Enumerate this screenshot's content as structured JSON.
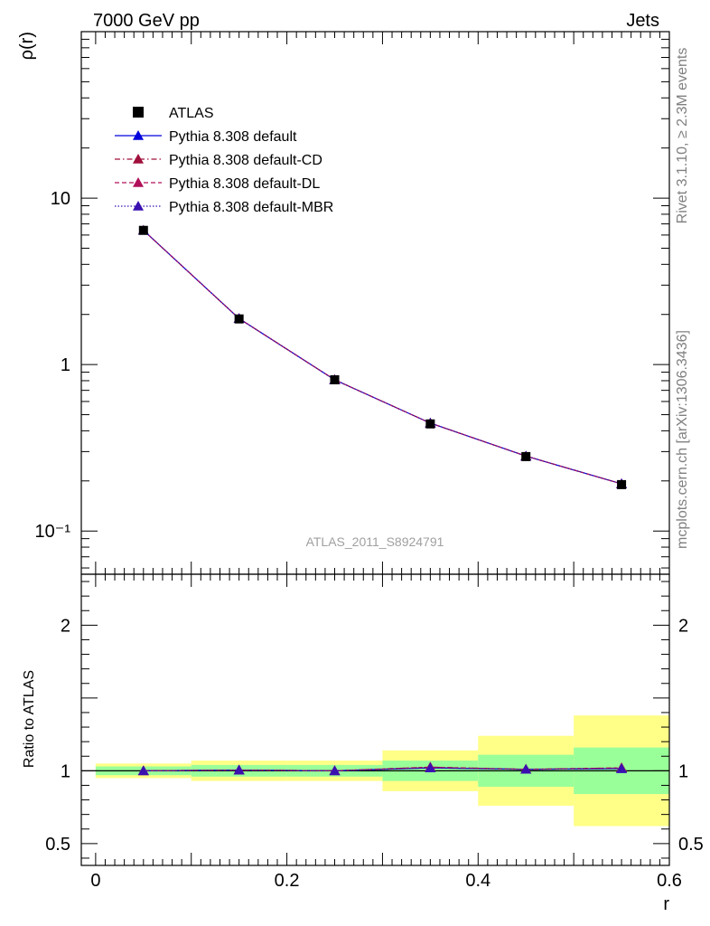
{
  "header": {
    "left": "7000 GeV pp",
    "right": "Jets"
  },
  "side_text": {
    "rivet": "Rivet 3.1.10, ≥ 2.3M events",
    "source": "mcplots.cern.ch [arXiv:1306.3436]"
  },
  "watermark": "ATLAS_2011_S8924791",
  "colors": {
    "atlas": "#000000",
    "default": "#0000dd",
    "cd": "#a0103c",
    "dl": "#b0105a",
    "mbr": "#3a10b0",
    "band_yellow": "#ffff88",
    "band_green": "#99ff99"
  },
  "chart_data": [
    {
      "type": "line",
      "panel": "main",
      "ylabel": "ρ(r)",
      "yscale": "log",
      "ylim": [
        0.055,
        100
      ],
      "xlim": [
        -0.015,
        0.6
      ],
      "y_ticks": [
        {
          "value": 10,
          "label": "10"
        },
        {
          "value": 1,
          "label": "1"
        },
        {
          "value": 0.1,
          "label": "10⁻¹"
        }
      ],
      "legend_position": "top-left",
      "x": [
        0.05,
        0.15,
        0.25,
        0.35,
        0.45,
        0.55
      ],
      "series": [
        {
          "name": "ATLAS",
          "marker": "square",
          "values": [
            6.4,
            1.88,
            0.81,
            0.44,
            0.28,
            0.19
          ]
        },
        {
          "name": "Pythia 8.308 default",
          "marker": "triangle",
          "line": "solid",
          "values": [
            6.4,
            1.89,
            0.81,
            0.445,
            0.282,
            0.192
          ]
        },
        {
          "name": "Pythia 8.308 default-CD",
          "marker": "triangle",
          "line": "dashdot",
          "values": [
            6.4,
            1.89,
            0.81,
            0.445,
            0.282,
            0.192
          ]
        },
        {
          "name": "Pythia 8.308 default-DL",
          "marker": "triangle",
          "line": "dashed",
          "values": [
            6.4,
            1.89,
            0.81,
            0.445,
            0.282,
            0.192
          ]
        },
        {
          "name": "Pythia 8.308 default-MBR",
          "marker": "triangle",
          "line": "dotted",
          "values": [
            6.4,
            1.89,
            0.81,
            0.445,
            0.282,
            0.192
          ]
        }
      ]
    },
    {
      "type": "line",
      "panel": "ratio",
      "ylabel": "Ratio to ATLAS",
      "xlabel": "r",
      "ylim": [
        0.35,
        2.35
      ],
      "xlim": [
        -0.015,
        0.6
      ],
      "y_ticks": [
        {
          "value": 2,
          "label": "2"
        },
        {
          "value": 1,
          "label": "1"
        },
        {
          "value": 0.5,
          "label": "0.5"
        }
      ],
      "x_ticks": [
        {
          "value": 0,
          "label": "0"
        },
        {
          "value": 0.2,
          "label": "0.2"
        },
        {
          "value": 0.4,
          "label": "0.4"
        },
        {
          "value": 0.6,
          "label": "0.6"
        }
      ],
      "reference": 1,
      "bins": [
        {
          "lo": 0.0,
          "hi": 0.1,
          "green": [
            0.97,
            1.03
          ],
          "yellow": [
            0.95,
            1.05
          ]
        },
        {
          "lo": 0.1,
          "hi": 0.2,
          "green": [
            0.96,
            1.04
          ],
          "yellow": [
            0.93,
            1.07
          ]
        },
        {
          "lo": 0.2,
          "hi": 0.3,
          "green": [
            0.96,
            1.04
          ],
          "yellow": [
            0.93,
            1.07
          ]
        },
        {
          "lo": 0.3,
          "hi": 0.4,
          "green": [
            0.93,
            1.07
          ],
          "yellow": [
            0.86,
            1.14
          ]
        },
        {
          "lo": 0.4,
          "hi": 0.5,
          "green": [
            0.89,
            1.11
          ],
          "yellow": [
            0.76,
            1.24
          ]
        },
        {
          "lo": 0.5,
          "hi": 0.6,
          "green": [
            0.84,
            1.16
          ],
          "yellow": [
            0.62,
            1.38
          ]
        }
      ],
      "x": [
        0.05,
        0.15,
        0.25,
        0.35,
        0.45,
        0.55
      ],
      "series": [
        {
          "name": "Pythia 8.308 default",
          "values": [
            1.0,
            1.005,
            1.0,
            1.02,
            1.01,
            1.015
          ]
        },
        {
          "name": "Pythia 8.308 default-CD",
          "values": [
            1.0,
            1.005,
            1.0,
            1.025,
            1.01,
            1.02
          ]
        },
        {
          "name": "Pythia 8.308 default-DL",
          "values": [
            1.0,
            1.005,
            1.0,
            1.025,
            1.01,
            1.02
          ]
        },
        {
          "name": "Pythia 8.308 default-MBR",
          "values": [
            1.0,
            1.005,
            1.0,
            1.02,
            1.01,
            1.015
          ]
        }
      ]
    }
  ]
}
